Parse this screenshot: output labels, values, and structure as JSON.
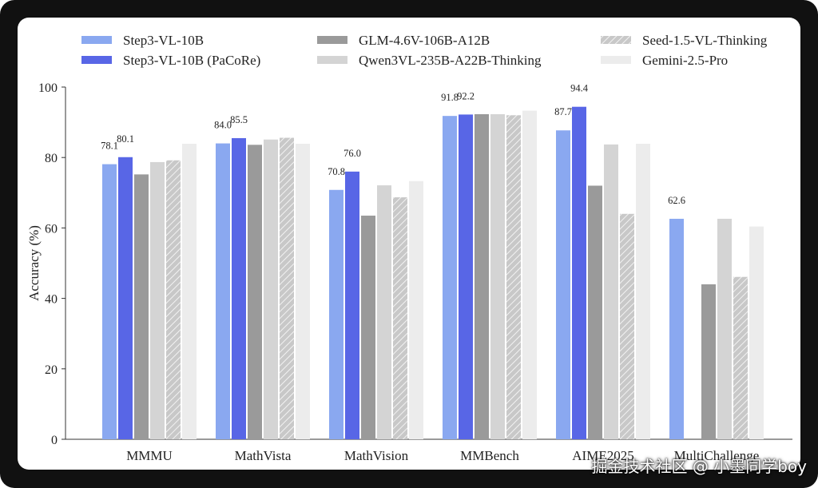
{
  "chart_data": {
    "type": "bar",
    "title": "",
    "xlabel": "",
    "ylabel": "Accuracy (%)",
    "ylim": [
      0,
      100
    ],
    "yticks": [
      "0",
      "20",
      "40",
      "60",
      "80",
      "100"
    ],
    "grid": false,
    "legend_position": "top",
    "categories": [
      "MMMU",
      "MathVista",
      "MathVision",
      "MMBench",
      "AIME2025",
      "MultiChallenge"
    ],
    "series": [
      {
        "name": "Step3-VL-10B",
        "values": [
          78.1,
          84.0,
          70.8,
          91.8,
          87.7,
          62.6
        ],
        "labels": [
          "78.1",
          "84.0",
          "70.8",
          "91.8",
          "87.7",
          "62.6"
        ],
        "color": "#8aa8f0",
        "hatch": false
      },
      {
        "name": "Step3-VL-10B (PaCoRe)",
        "values": [
          80.1,
          85.5,
          76.0,
          92.2,
          94.4,
          null
        ],
        "labels": [
          "80.1",
          "85.5",
          "76.0",
          "92.2",
          "94.4",
          ""
        ],
        "color": "#5866e6",
        "hatch": false
      },
      {
        "name": "GLM-4.6V-106B-A12B",
        "values": [
          75.2,
          83.6,
          63.5,
          92.3,
          72.0,
          44.0
        ],
        "labels": [
          "",
          "",
          "",
          "",
          "",
          ""
        ],
        "color": "#9a9a9a",
        "hatch": false
      },
      {
        "name": "Qwen3VL-235B-A22B-Thinking",
        "values": [
          78.7,
          85.1,
          72.1,
          92.3,
          83.7,
          62.6
        ],
        "labels": [
          "",
          "",
          "",
          "",
          "",
          ""
        ],
        "color": "#d4d4d4",
        "hatch": false
      },
      {
        "name": "Seed-1.5-VL-Thinking",
        "values": [
          79.2,
          85.6,
          68.7,
          92.0,
          64.0,
          46.1
        ],
        "labels": [
          "",
          "",
          "",
          "",
          "",
          ""
        ],
        "color": "#c4c4c4",
        "hatch": true
      },
      {
        "name": "Gemini-2.5-Pro",
        "values": [
          83.9,
          83.9,
          73.3,
          93.3,
          83.9,
          60.4
        ],
        "labels": [
          "",
          "",
          "",
          "",
          "",
          ""
        ],
        "color": "#ececec",
        "hatch": false
      }
    ]
  },
  "watermark": "掘金技术社区 @ 小墨同学boy"
}
